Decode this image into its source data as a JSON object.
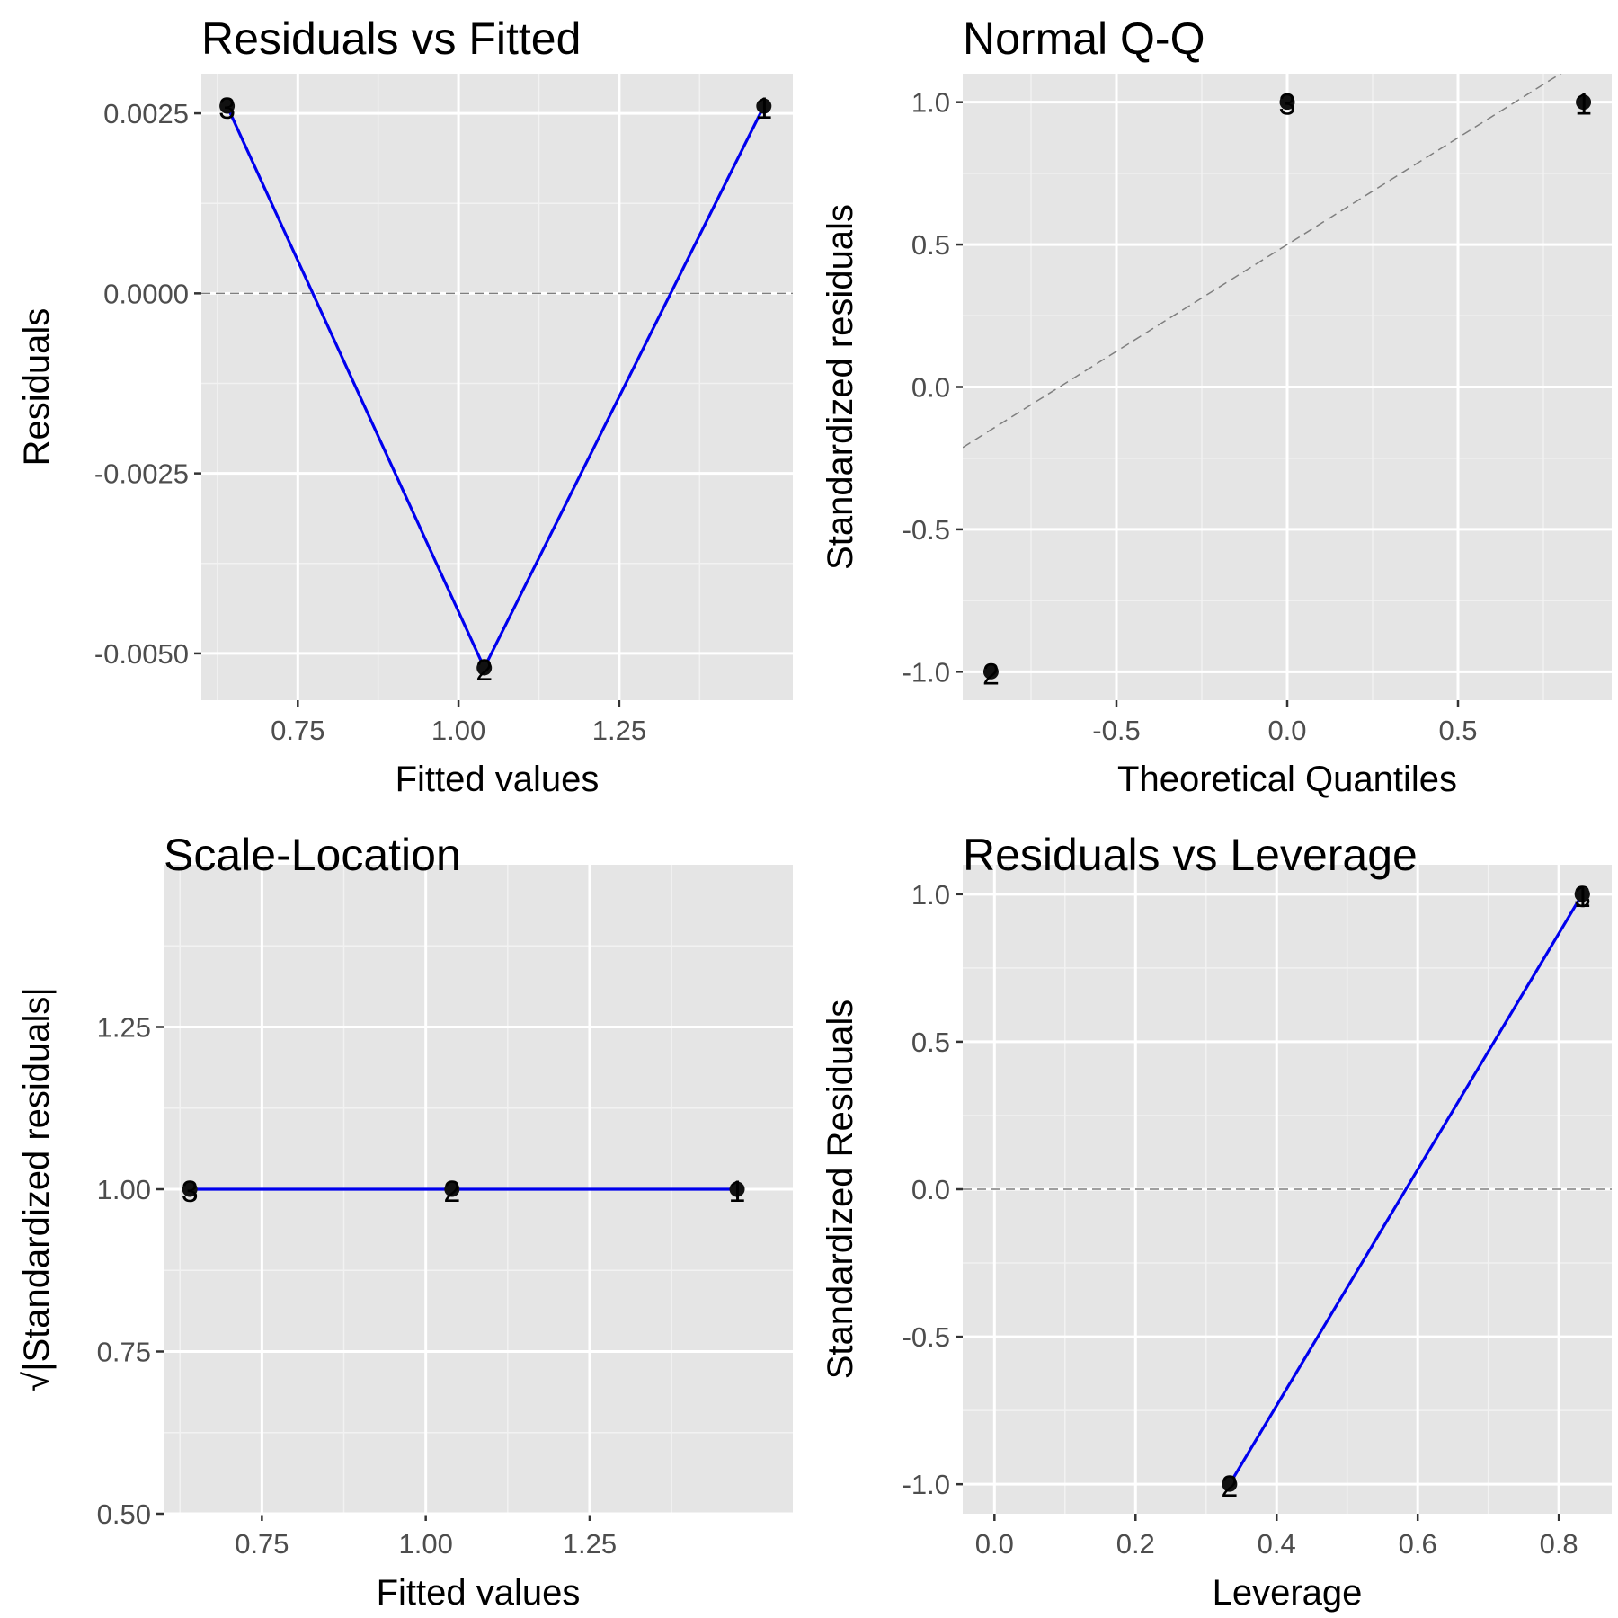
{
  "chart_data": [
    {
      "type": "scatter",
      "title": "Residuals vs Fitted",
      "xlabel": "Fitted values",
      "ylabel": "Residuals",
      "xlim": [
        0.6,
        1.52
      ],
      "ylim": [
        -0.00565,
        0.00305
      ],
      "x_ticks": [
        0.75,
        1.0,
        1.25
      ],
      "x_tick_labels": [
        "0.75",
        "1.00",
        "1.25"
      ],
      "y_ticks": [
        -0.005,
        -0.0025,
        0.0,
        0.0025
      ],
      "y_tick_labels": [
        "-0.0050",
        "-0.0025",
        "0.0000",
        "0.0025"
      ],
      "points": [
        {
          "label": "3",
          "x": 0.64,
          "y": 0.0026
        },
        {
          "label": "2",
          "x": 1.04,
          "y": -0.0052
        },
        {
          "label": "1",
          "x": 1.475,
          "y": 0.0026
        }
      ],
      "line": "connect",
      "ref_line": {
        "type": "hline",
        "y": 0
      },
      "grid": true
    },
    {
      "type": "scatter",
      "title": "Normal Q-Q",
      "xlabel": "Theoretical Quantiles",
      "ylabel": "Standardized residuals",
      "xlim": [
        -0.95,
        0.95
      ],
      "ylim": [
        -1.1,
        1.1
      ],
      "x_ticks": [
        -0.5,
        0.0,
        0.5
      ],
      "x_tick_labels": [
        "-0.5",
        "0.0",
        "0.5"
      ],
      "y_ticks": [
        -1.0,
        -0.5,
        0.0,
        0.5,
        1.0
      ],
      "y_tick_labels": [
        "-1.0",
        "-0.5",
        "0.0",
        "0.5",
        "1.0"
      ],
      "points": [
        {
          "label": "2",
          "x": -0.8673,
          "y": -1.0
        },
        {
          "label": "3",
          "x": 0.0,
          "y": 1.0
        },
        {
          "label": "1",
          "x": 0.8673,
          "y": 1.0
        }
      ],
      "line": "none",
      "ref_line": {
        "type": "abline",
        "slope": 0.75,
        "intercept": 0.5
      },
      "grid": true
    },
    {
      "type": "scatter",
      "title": "Scale-Location",
      "xlabel": "Fitted values",
      "ylabel": "√|Standardized residuals|",
      "xlim": [
        0.6,
        1.56
      ],
      "ylim": [
        0.5,
        1.5
      ],
      "x_ticks": [
        0.75,
        1.0,
        1.25
      ],
      "x_tick_labels": [
        "0.75",
        "1.00",
        "1.25"
      ],
      "y_ticks": [
        0.5,
        0.75,
        1.0,
        1.25
      ],
      "y_tick_labels": [
        "0.50",
        "0.75",
        "1.00",
        "1.25"
      ],
      "points": [
        {
          "label": "3",
          "x": 0.64,
          "y": 1.0
        },
        {
          "label": "2",
          "x": 1.04,
          "y": 1.0
        },
        {
          "label": "1",
          "x": 1.475,
          "y": 1.0
        }
      ],
      "line": "connect",
      "grid": true
    },
    {
      "type": "scatter",
      "title": "Residuals vs Leverage",
      "xlabel": "Leverage",
      "ylabel": "Standardized Residuals",
      "xlim": [
        -0.045,
        0.875
      ],
      "ylim": [
        -1.1,
        1.1
      ],
      "x_ticks": [
        0.0,
        0.2,
        0.4,
        0.6,
        0.8
      ],
      "x_tick_labels": [
        "0.0",
        "0.2",
        "0.4",
        "0.6",
        "0.8"
      ],
      "y_ticks": [
        -1.0,
        -0.5,
        0.0,
        0.5,
        1.0
      ],
      "y_tick_labels": [
        "-1.0",
        "-0.5",
        "0.0",
        "0.5",
        "1.0"
      ],
      "points": [
        {
          "label": "2",
          "x": 0.3333,
          "y": -1.0
        },
        {
          "label": "3",
          "x": 0.8333,
          "y": 1.0
        },
        {
          "label": "1",
          "x": 0.8333,
          "y": 1.0
        }
      ],
      "line": "connect",
      "ref_line": {
        "type": "hline",
        "y": 0
      },
      "grid": true
    }
  ]
}
